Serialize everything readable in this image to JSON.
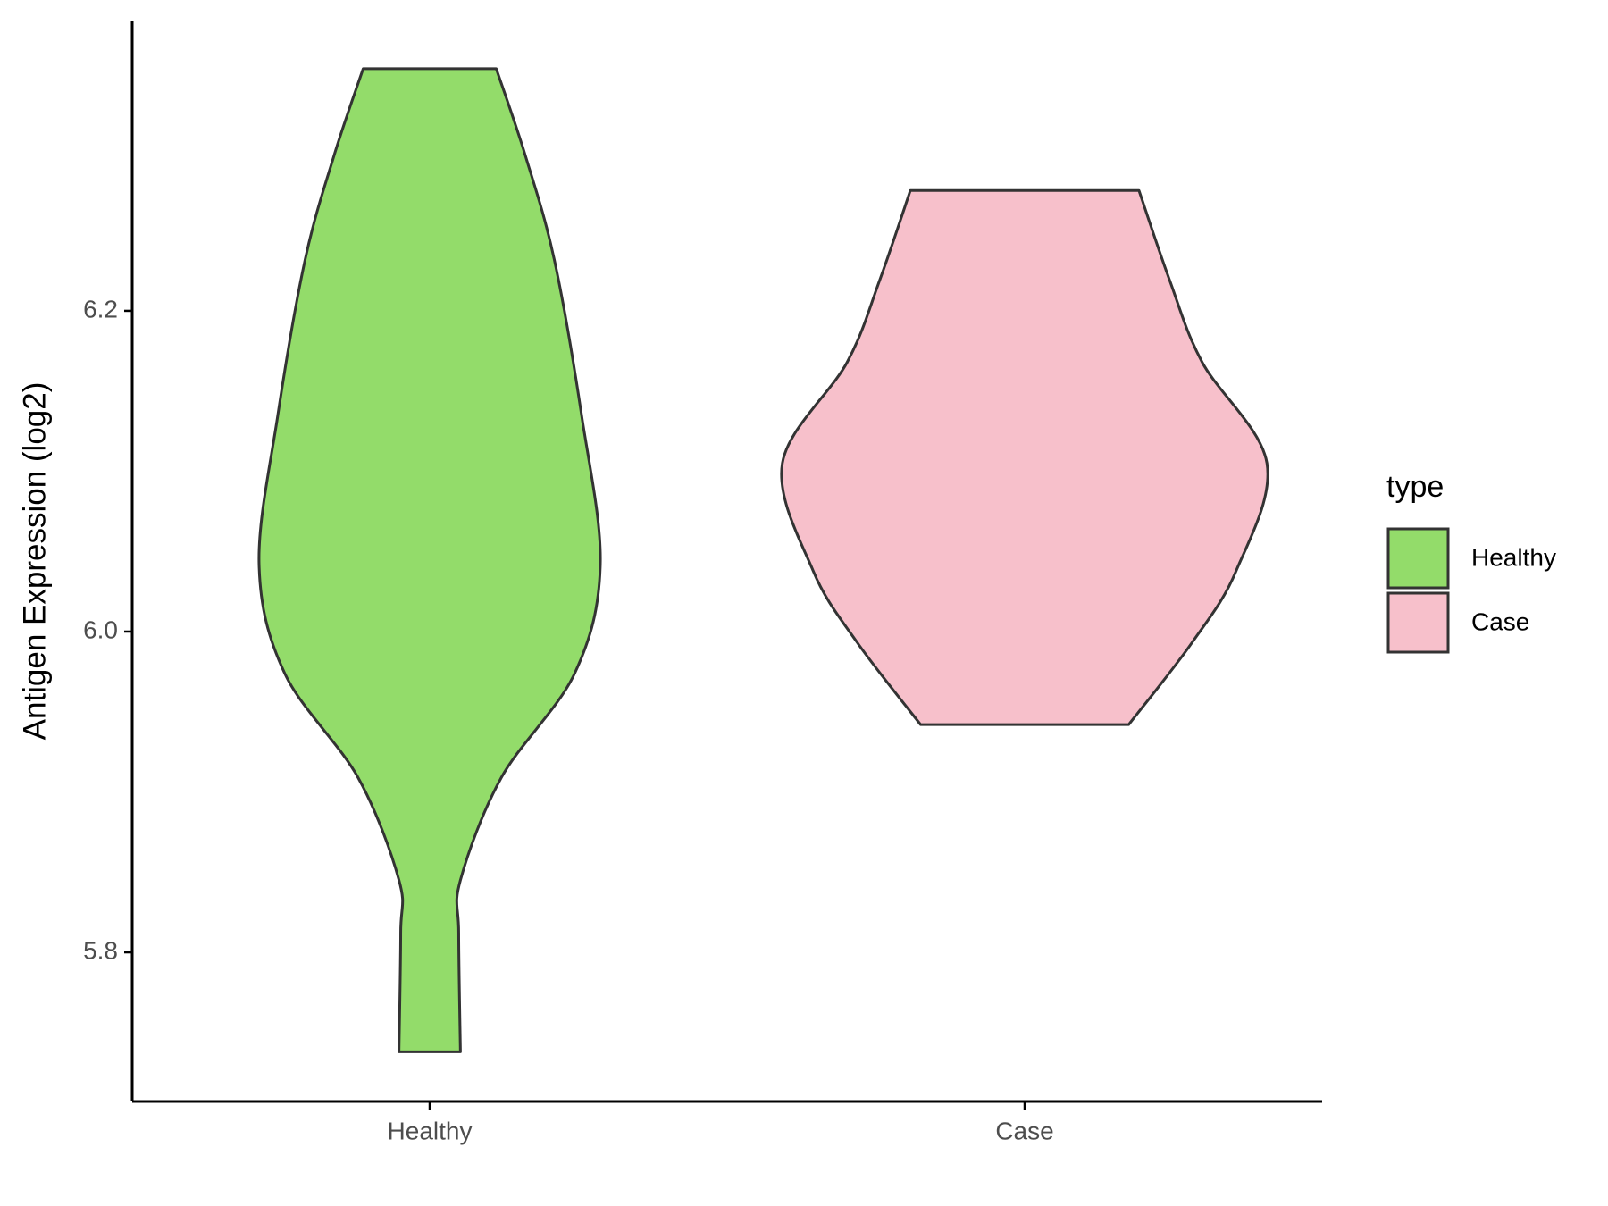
{
  "chart_data": {
    "type": "violin",
    "y_label": "Antigen Expression (log2)",
    "categories": [
      "Healthy",
      "Case"
    ],
    "legend_title": "type",
    "legend_position": "right",
    "ylim": [
      5.707,
      6.381
    ],
    "yticks": [
      5.8,
      {
        "value": 6,
        "label": "6.0"
      },
      6.2
    ],
    "series": [
      {
        "name": "Healthy",
        "color": "#93dc6a",
        "y": [
          6.351,
          6.297,
          6.232,
          6.135,
          6.042,
          5.974,
          5.909,
          5.845,
          5.812,
          5.738
        ],
        "density": [
          0.39,
          0.56,
          0.73,
          0.89,
          1.0,
          0.85,
          0.42,
          0.18,
          0.17,
          0.18
        ]
      },
      {
        "name": "Case",
        "color": "#f7c0cb",
        "y": [
          6.275,
          6.219,
          6.168,
          6.105,
          6.038,
          5.993,
          5.942
        ],
        "density": [
          0.67,
          0.85,
          1.04,
          1.42,
          1.24,
          0.98,
          0.61
        ]
      }
    ]
  }
}
